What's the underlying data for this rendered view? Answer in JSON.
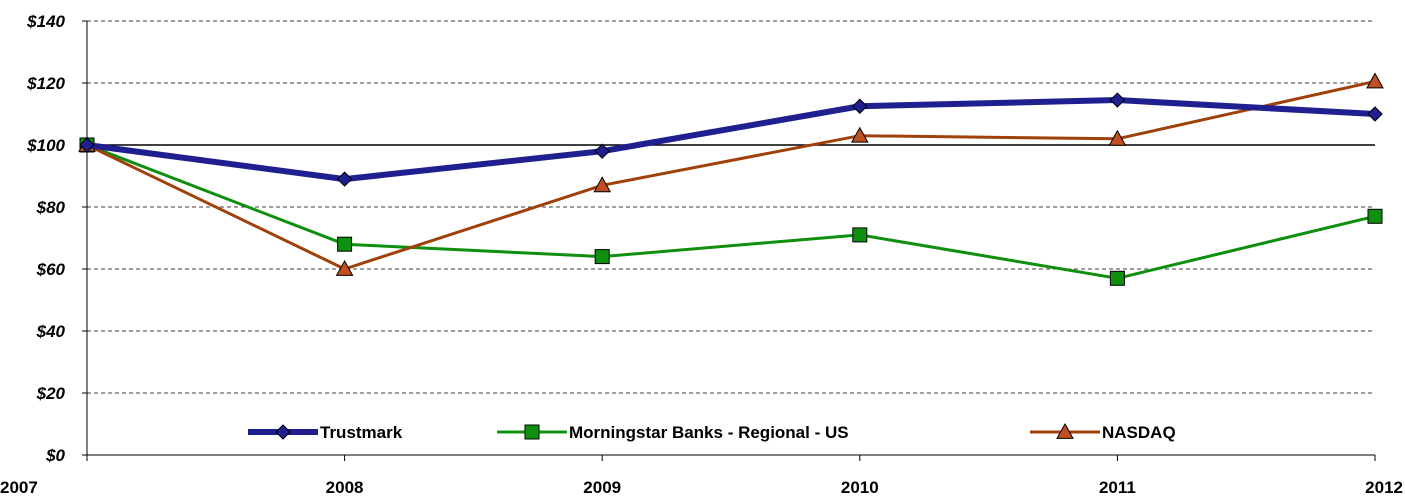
{
  "chart_data": {
    "type": "line",
    "categories": [
      "2007",
      "2008",
      "2009",
      "2010",
      "2011",
      "2012"
    ],
    "ylim": [
      0,
      140
    ],
    "yticks": [
      0,
      20,
      40,
      60,
      80,
      100,
      120,
      140
    ],
    "ytick_labels": [
      "$0",
      "$20",
      "$40",
      "$60",
      "$80",
      "$100",
      "$120",
      "$140"
    ],
    "reference_line": 100,
    "grid": "horizontal dashed",
    "legend_position": "bottom",
    "series": [
      {
        "name": "Trustmark",
        "values": [
          100,
          89,
          98,
          112.5,
          114.5,
          110
        ],
        "color": "#1f1f8f",
        "marker": "diamond",
        "marker_color": "#1f1f8f"
      },
      {
        "name": "Morningstar Banks - Regional - US",
        "values": [
          100,
          68,
          64,
          71,
          57,
          77
        ],
        "color": "#0f8f0f",
        "marker": "square",
        "marker_color": "#0f8f0f"
      },
      {
        "name": "NASDAQ",
        "values": [
          100,
          60,
          87,
          103,
          102,
          120.5
        ],
        "color": "#a0400a",
        "marker": "triangle",
        "marker_color": "#c0501f"
      }
    ]
  }
}
